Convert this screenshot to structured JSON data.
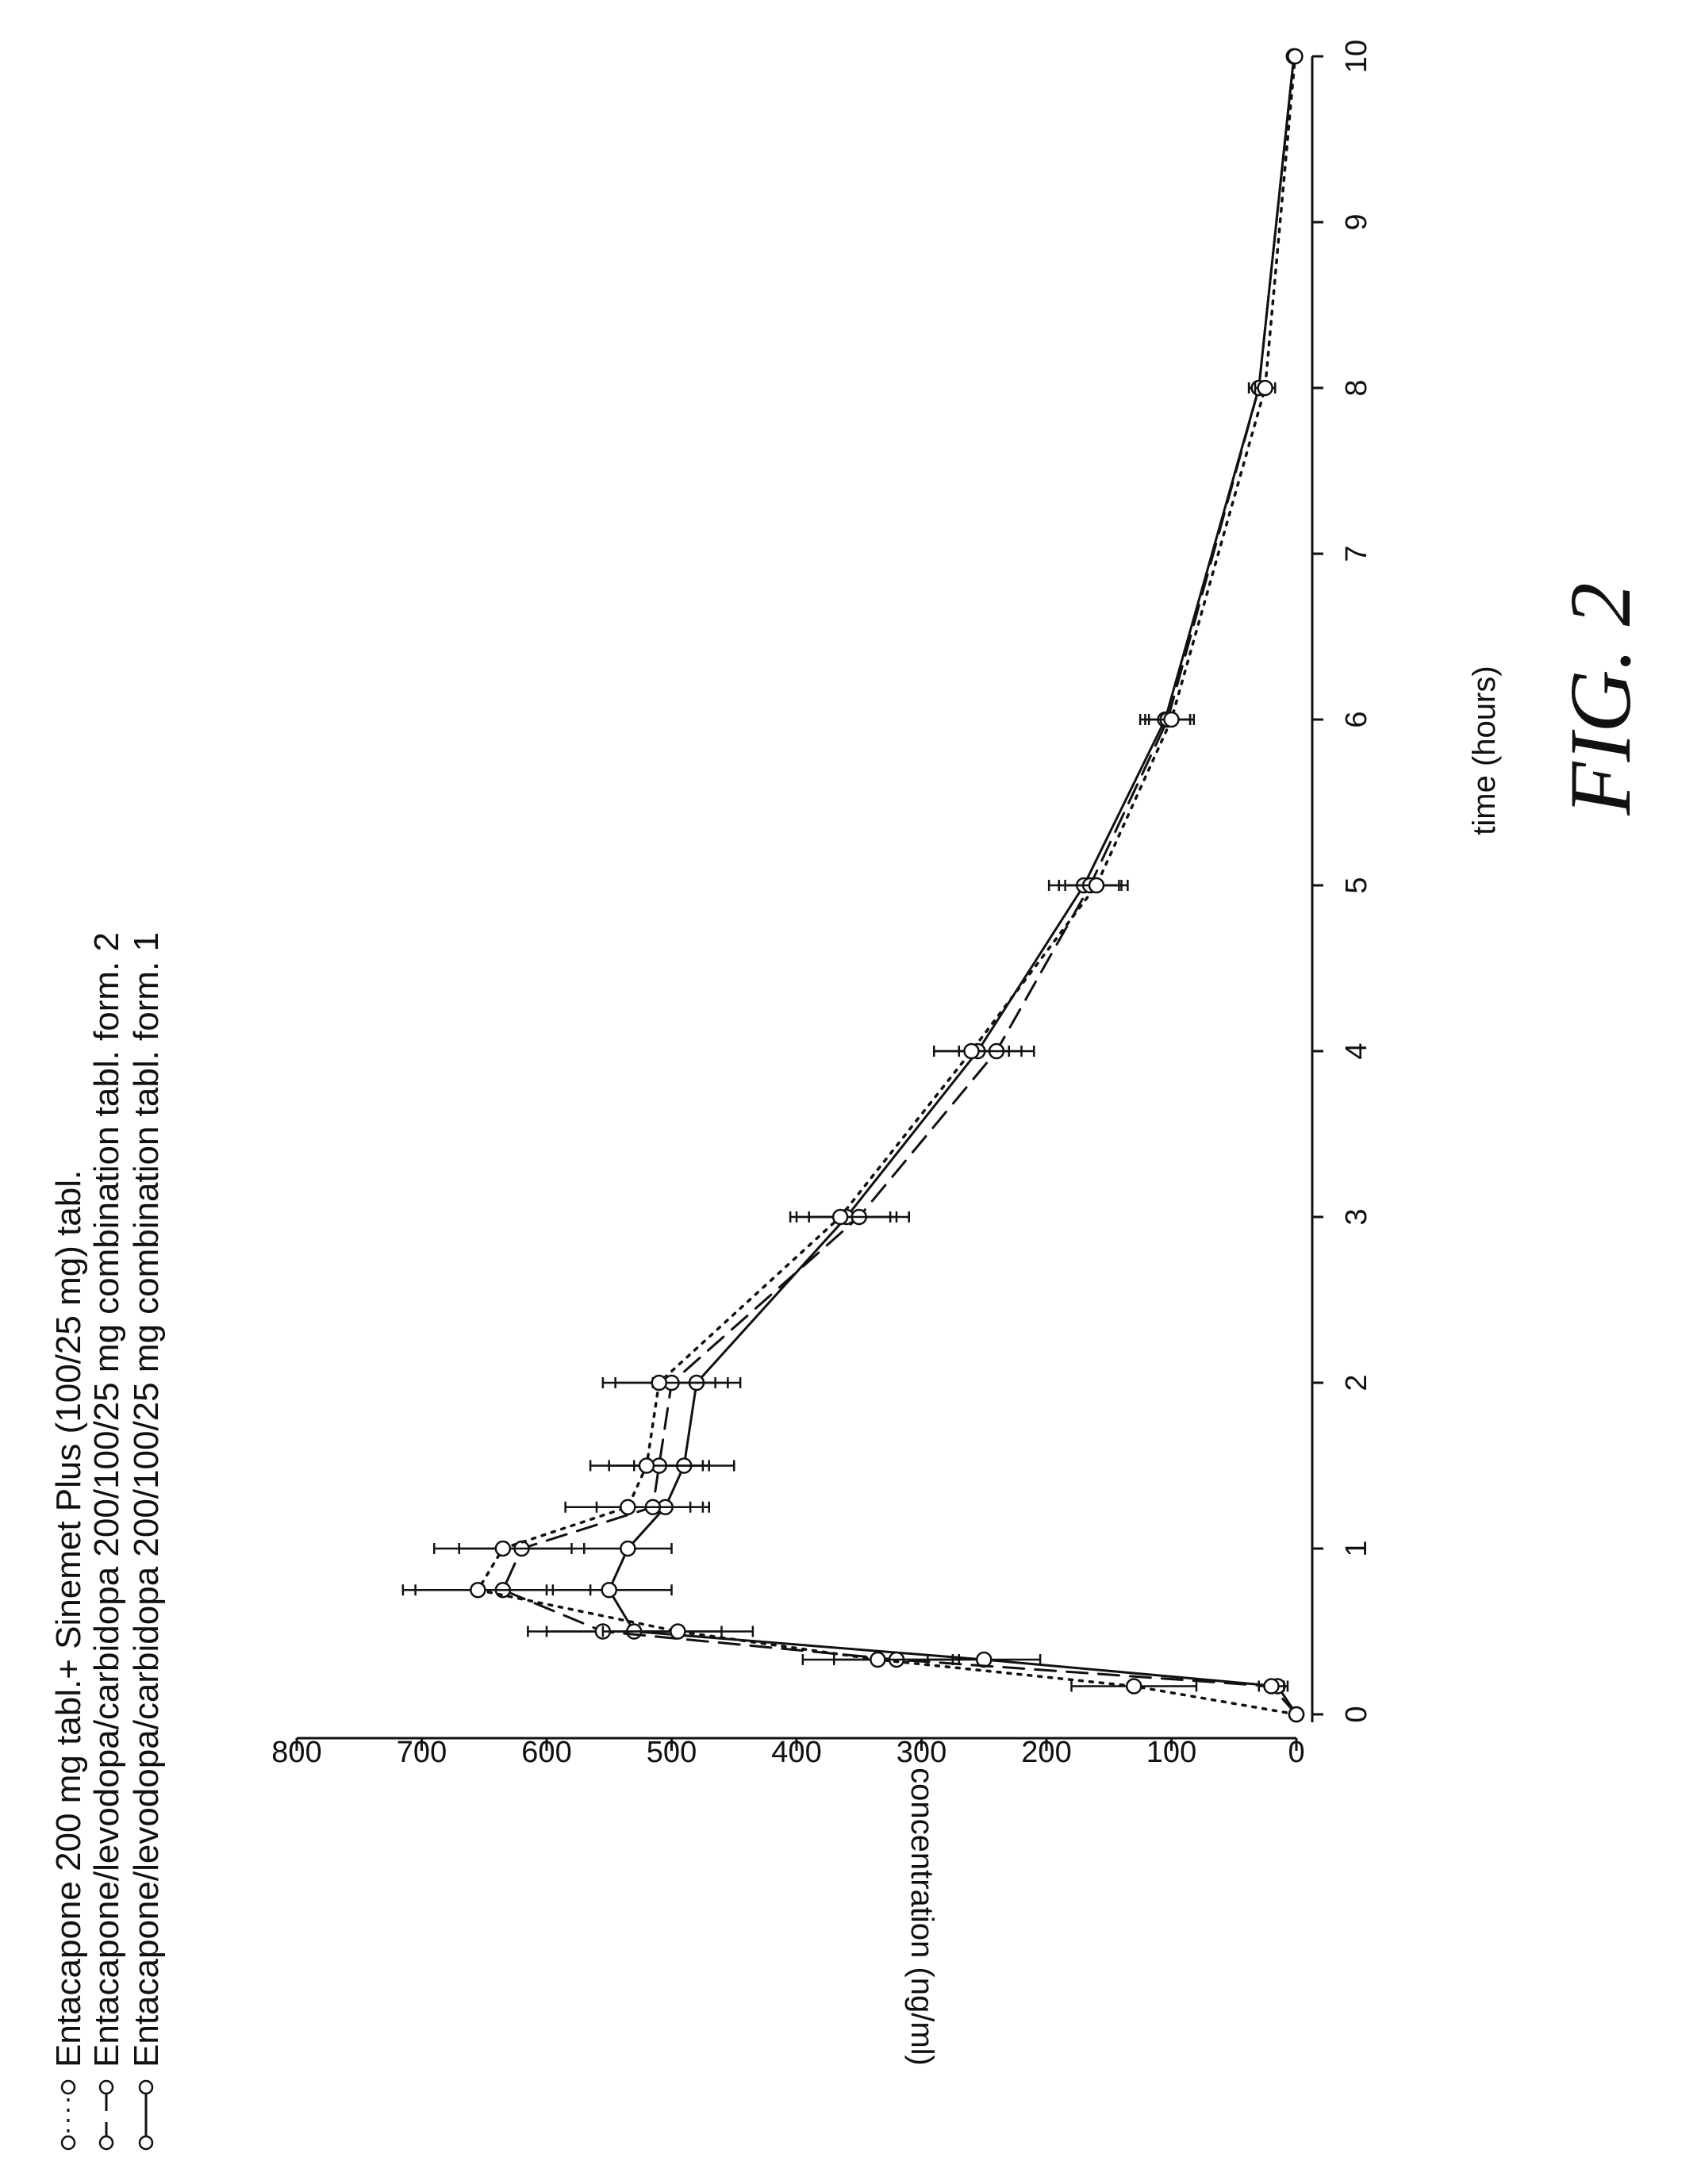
{
  "figure_label": "FIG. 2",
  "chart_data": {
    "type": "line",
    "xlabel": "time (hours)",
    "ylabel": "concentration (ng/ml)",
    "xlim": [
      0,
      10
    ],
    "ylim": [
      0,
      800
    ],
    "x_ticks": [
      "0",
      "1",
      "2",
      "3",
      "4",
      "5",
      "6",
      "7",
      "8",
      "9",
      "10"
    ],
    "y_ticks": [
      "0",
      "100",
      "200",
      "300",
      "400",
      "500",
      "600",
      "700",
      "800"
    ],
    "legend_position": "top-left",
    "series": [
      {
        "name": "Entacapone/levodopa/carbidopa 200/100/25 mg combination tabl. form. 1",
        "line": "solid",
        "x": [
          0,
          0.17,
          0.33,
          0.5,
          0.75,
          1.0,
          1.25,
          1.5,
          2.0,
          3.0,
          4.0,
          5.0,
          6.0,
          8.0,
          10.0
        ],
        "y": [
          0,
          15,
          250,
          530,
          550,
          535,
          505,
          490,
          480,
          360,
          255,
          170,
          105,
          30,
          2
        ],
        "err": [
          0,
          8,
          45,
          70,
          50,
          35,
          30,
          40,
          35,
          40,
          35,
          28,
          20,
          8,
          2
        ]
      },
      {
        "name": "Entacapone/levodopa/carbidopa 200/100/25 mg combination tabl. form. 2",
        "line": "dashed",
        "x": [
          0,
          0.17,
          0.33,
          0.5,
          0.75,
          1.0,
          1.25,
          1.5,
          2.0,
          3.0,
          4.0,
          5.0,
          6.0,
          8.0,
          10.0
        ],
        "y": [
          0,
          20,
          320,
          555,
          635,
          620,
          515,
          510,
          500,
          350,
          240,
          165,
          103,
          30,
          2
        ],
        "err": [
          0,
          10,
          50,
          60,
          70,
          50,
          45,
          40,
          45,
          40,
          30,
          25,
          18,
          8,
          2
        ]
      },
      {
        "name": "Entacapone 200 mg tabl.+ Sinemet Plus (100/25 mg) tabl.",
        "line": "dotted",
        "x": [
          0,
          0.17,
          0.33,
          0.5,
          0.75,
          1.0,
          1.25,
          1.5,
          2.0,
          3.0,
          4.0,
          5.0,
          6.0,
          8.0,
          10.0
        ],
        "y": [
          0,
          130,
          335,
          495,
          655,
          635,
          535,
          520,
          510,
          365,
          260,
          160,
          100,
          25,
          1
        ],
        "err": [
          0,
          50,
          60,
          60,
          60,
          55,
          50,
          45,
          45,
          40,
          30,
          25,
          18,
          8,
          2
        ]
      }
    ]
  }
}
